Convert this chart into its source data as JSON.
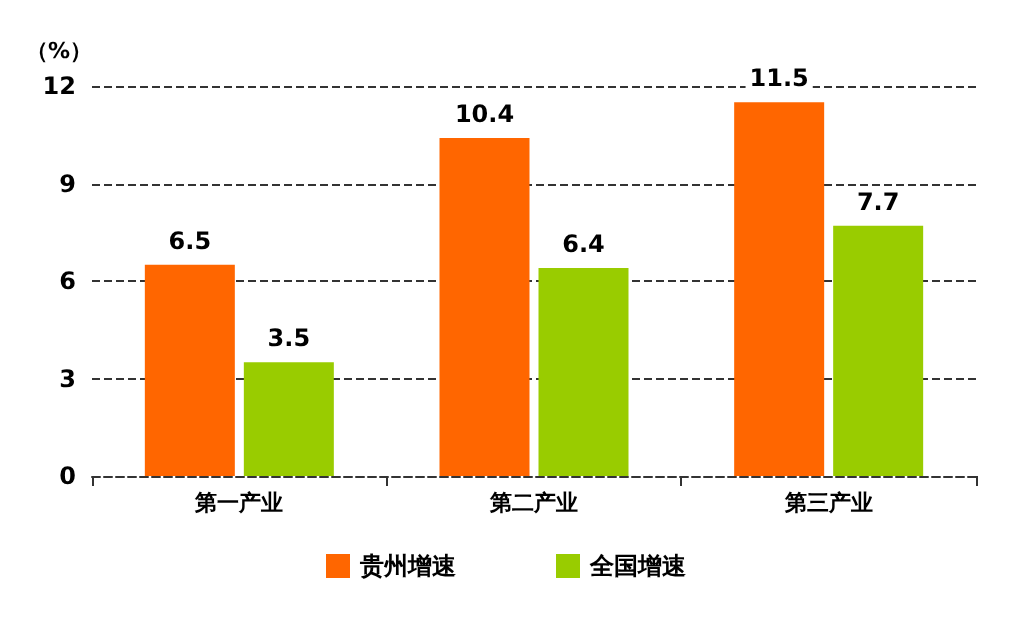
{
  "chart_data": {
    "type": "bar",
    "ylabel": "（%）",
    "categories": [
      "第一产业",
      "第二产业",
      "第三产业"
    ],
    "series": [
      {
        "name": "贵州增速",
        "color": "#ff6600",
        "values": [
          6.5,
          10.4,
          11.5
        ]
      },
      {
        "name": "全国增速",
        "color": "#99cc00",
        "values": [
          3.5,
          6.4,
          7.7
        ]
      }
    ],
    "ylim": [
      0,
      12
    ],
    "yticks": [
      0,
      3,
      6,
      9,
      12
    ],
    "grid": "y",
    "legend": "bottom",
    "data_labels": true
  }
}
